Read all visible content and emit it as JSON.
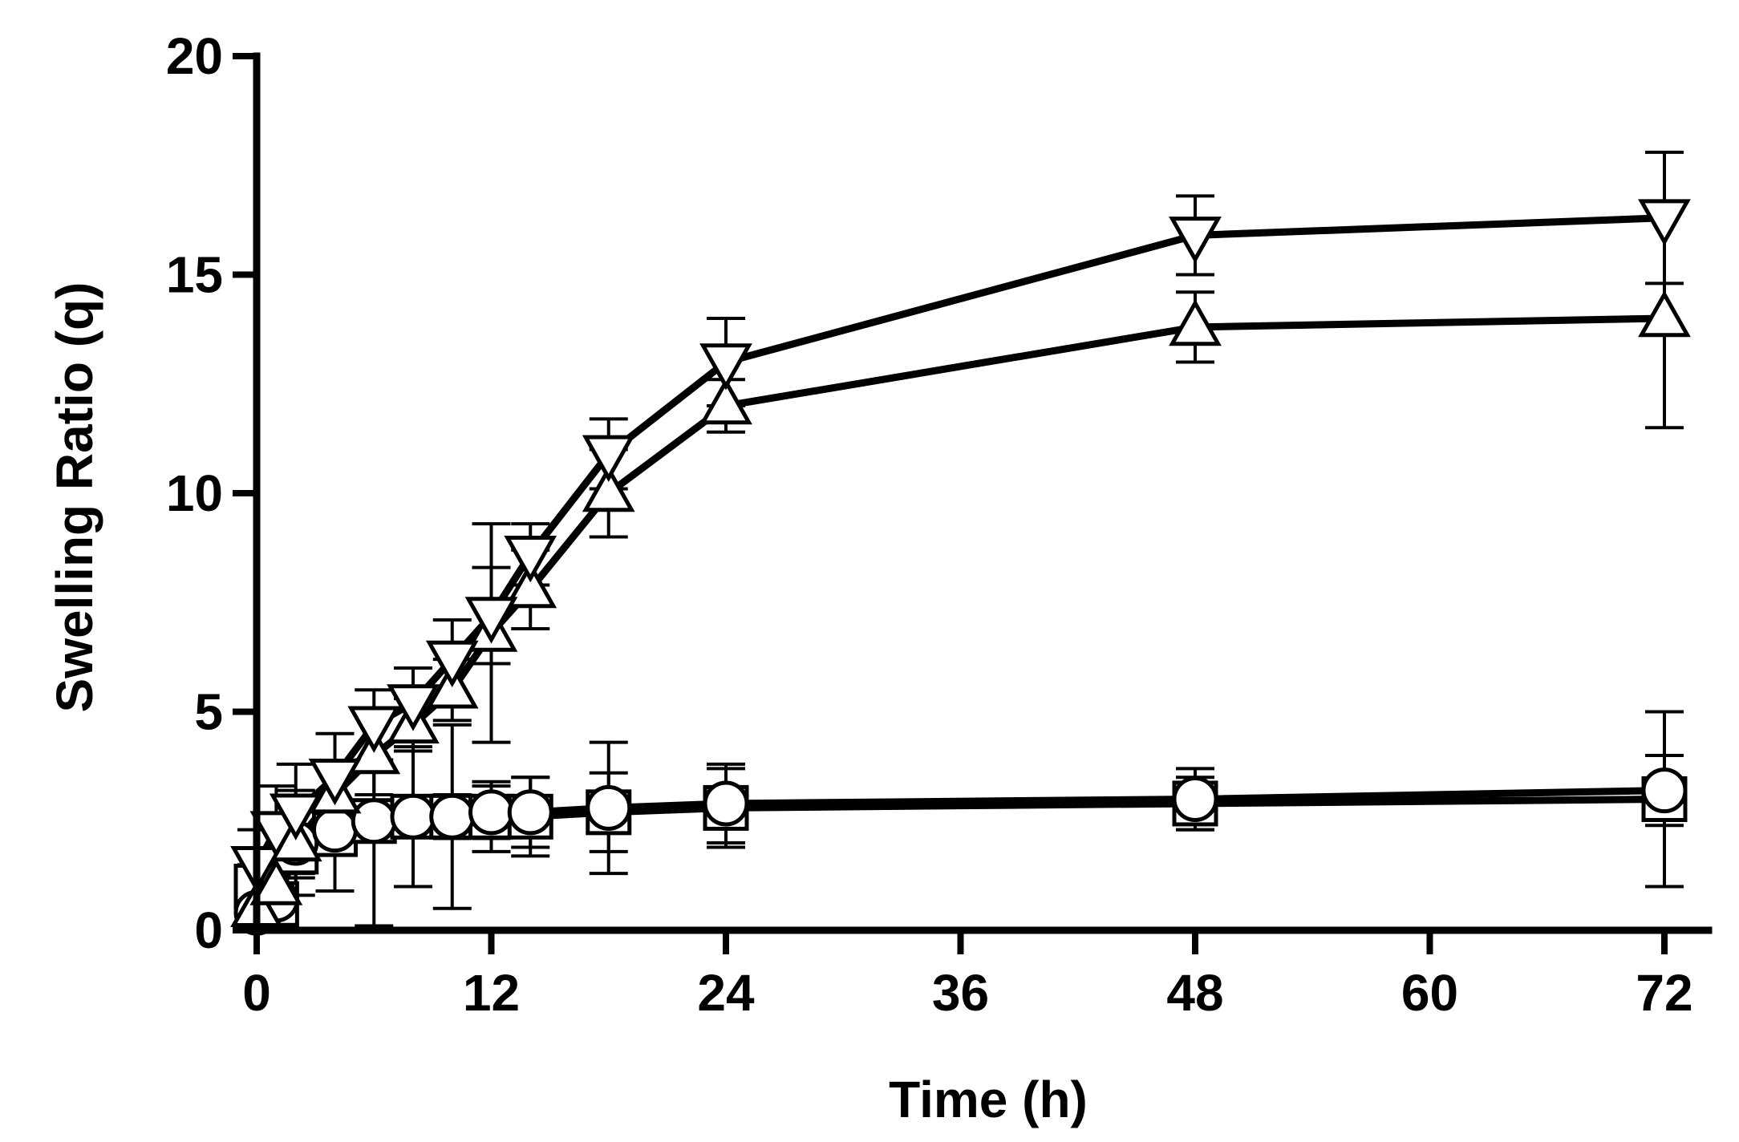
{
  "chart_data": {
    "type": "line",
    "title": "",
    "xlabel": "Time (h)",
    "ylabel": "Swelling Ratio (q)",
    "xlim": [
      0,
      72
    ],
    "ylim": [
      0,
      20
    ],
    "xticks": [
      0,
      12,
      24,
      36,
      48,
      60,
      72
    ],
    "yticks": [
      0,
      5,
      10,
      15,
      20
    ],
    "xtick_labels": [
      "0",
      "12",
      "24",
      "36",
      "48",
      "60",
      "72"
    ],
    "ytick_labels": [
      "0",
      "5",
      "10",
      "15",
      "20"
    ],
    "grid": false,
    "legend": "none",
    "series": [
      {
        "name": "square",
        "marker": "square",
        "x": [
          0,
          1,
          2,
          4,
          6,
          8,
          10,
          12,
          14,
          18,
          24,
          48,
          72
        ],
        "y": [
          1.0,
          0.6,
          1.8,
          2.2,
          2.5,
          2.6,
          2.6,
          2.6,
          2.6,
          2.7,
          2.8,
          2.9,
          3.0
        ],
        "err": [
          0.5,
          0.6,
          0.5,
          0.4,
          0.4,
          0.4,
          0.5,
          0.8,
          0.9,
          0.9,
          0.9,
          0.6,
          2.0
        ]
      },
      {
        "name": "circle",
        "marker": "circle",
        "x": [
          0,
          1,
          2,
          4,
          6,
          8,
          10,
          12,
          14,
          18,
          24,
          48,
          72
        ],
        "y": [
          0.4,
          0.7,
          2.0,
          2.3,
          2.5,
          2.6,
          2.6,
          2.7,
          2.7,
          2.8,
          2.9,
          3.0,
          3.2
        ],
        "err": [
          0.3,
          0.6,
          1.2,
          1.4,
          2.4,
          1.6,
          2.1,
          0.6,
          0.8,
          1.5,
          0.9,
          0.7,
          0.8
        ]
      },
      {
        "name": "triangle-up",
        "marker": "triangle-up",
        "x": [
          0,
          1,
          2,
          4,
          6,
          8,
          10,
          12,
          14,
          18,
          24,
          48,
          72
        ],
        "y": [
          0.5,
          1.0,
          2.0,
          3.1,
          4.0,
          4.7,
          5.5,
          6.8,
          7.8,
          10.0,
          12.0,
          13.8,
          14.0
        ],
        "err": [
          0.3,
          0.5,
          0.8,
          0.7,
          0.9,
          0.6,
          0.7,
          2.5,
          0.9,
          1.0,
          0.6,
          0.8,
          2.5
        ]
      },
      {
        "name": "triangle-down",
        "marker": "triangle-down",
        "x": [
          0,
          1,
          2,
          4,
          6,
          8,
          10,
          12,
          14,
          18,
          24,
          48,
          72
        ],
        "y": [
          1.5,
          2.3,
          2.7,
          3.5,
          4.7,
          5.2,
          6.2,
          7.2,
          8.6,
          10.9,
          13.0,
          15.9,
          16.3
        ],
        "err": [
          0.8,
          1.0,
          1.1,
          1.0,
          0.8,
          0.8,
          0.9,
          1.1,
          0.7,
          0.8,
          1.0,
          0.9,
          1.5
        ]
      }
    ]
  }
}
